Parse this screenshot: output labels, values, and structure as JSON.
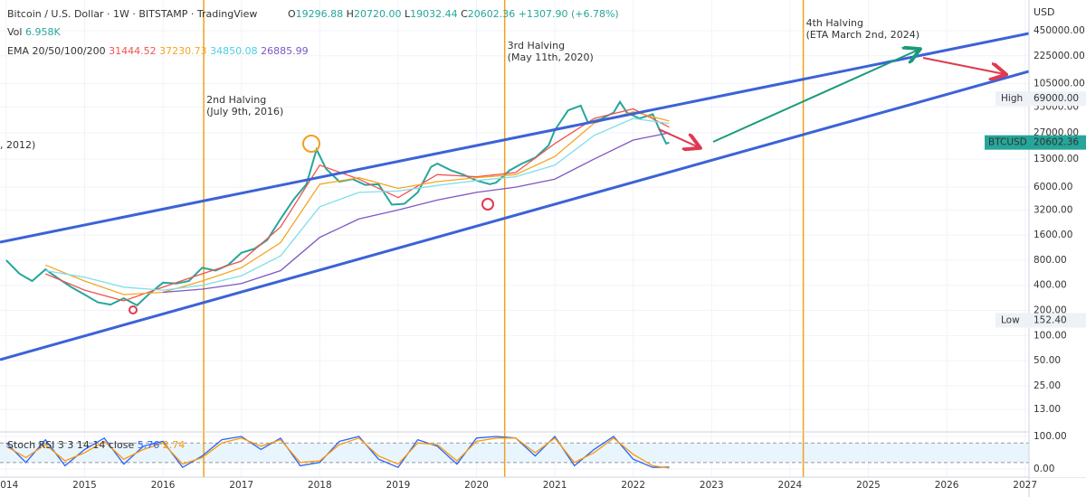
{
  "header": {
    "title": "Bitcoin / U.S. Dollar · 1W · BITSTAMP · TradingView",
    "ohlc": [
      "O",
      "19296.88",
      "H",
      "20720.00",
      "L",
      "19032.44",
      "C",
      "+1307.90 (+6.78%)"
    ],
    "volume_label": "Vol",
    "volume": "6.958K"
  },
  "chart_data": [
    {
      "type": "line",
      "label": "EMA 20/50/100/200",
      "y_unit": "USD",
      "log_scale": true,
      "grid": true,
      "xlim": [
        2013.92,
        2027.05
      ],
      "xticks": [
        2014,
        2015,
        2016,
        2017,
        2018,
        2019,
        2020,
        2021,
        2022,
        2023,
        2024,
        2025,
        2026,
        2027
      ],
      "ylim": [
        7,
        927000
      ],
      "yticks": [
        {
          "value": 450000,
          "label": "450000.00"
        },
        {
          "value": 225000,
          "label": "225000.00"
        },
        {
          "value": 105000,
          "label": "105000.00"
        },
        {
          "value": 55000,
          "label": "55000.00"
        },
        {
          "value": 27000,
          "label": "27000.00"
        },
        {
          "value": 13000,
          "label": "13000.00"
        },
        {
          "value": 6000,
          "label": "6000.00"
        },
        {
          "value": 3200,
          "label": "3200.00"
        },
        {
          "value": 1600,
          "label": "1600.00"
        },
        {
          "value": 800,
          "label": "800.00"
        },
        {
          "value": 400,
          "label": "400.00"
        },
        {
          "value": 200,
          "label": "200.00"
        },
        {
          "value": 100,
          "label": "100.00"
        },
        {
          "value": 50,
          "label": "50.00"
        },
        {
          "value": 25,
          "label": "25.00"
        },
        {
          "value": 13,
          "label": "13.00"
        }
      ],
      "series": [
        {
          "name": "BTCUSD",
          "color": "#26a69a",
          "x": [
            2014.0,
            2014.17,
            2014.33,
            2014.5,
            2014.67,
            2014.83,
            2015.0,
            2015.17,
            2015.33,
            2015.5,
            2015.67,
            2015.83,
            2016.0,
            2016.17,
            2016.33,
            2016.5,
            2016.67,
            2016.83,
            2017.0,
            2017.17,
            2017.33,
            2017.5,
            2017.67,
            2017.83,
            2017.96,
            2018.08,
            2018.25,
            2018.42,
            2018.58,
            2018.75,
            2018.92,
            2019.08,
            2019.25,
            2019.42,
            2019.5,
            2019.67,
            2019.83,
            2020.0,
            2020.17,
            2020.25,
            2020.42,
            2020.58,
            2020.75,
            2020.92,
            2021.0,
            2021.17,
            2021.33,
            2021.42,
            2021.58,
            2021.75,
            2021.83,
            2021.92,
            2022.08,
            2022.25,
            2022.33,
            2022.42,
            2022.46
          ],
          "values": [
            800,
            550,
            450,
            620,
            480,
            380,
            310,
            250,
            235,
            280,
            230,
            320,
            430,
            420,
            450,
            650,
            600,
            700,
            980,
            1100,
            1400,
            2500,
            4300,
            6500,
            17000,
            10000,
            7000,
            7500,
            6400,
            6500,
            3700,
            3800,
            5200,
            10500,
            11500,
            9600,
            8500,
            7200,
            6500,
            6800,
            9500,
            11500,
            13500,
            19000,
            29000,
            50000,
            57000,
            36000,
            39000,
            47000,
            63000,
            47000,
            40000,
            45000,
            30000,
            20000,
            20602.36
          ]
        },
        {
          "color": "#ef5350",
          "x": [
            2014.5,
            2015,
            2015.5,
            2016,
            2016.5,
            2017,
            2017.5,
            2018,
            2018.5,
            2019,
            2019.5,
            2020,
            2020.5,
            2021,
            2021.5,
            2022,
            2022.46
          ],
          "values": [
            550,
            350,
            260,
            380,
            550,
            780,
            2000,
            11000,
            7500,
            4500,
            8500,
            8000,
            9000,
            20000,
            40000,
            52000,
            31444.52
          ]
        },
        {
          "color": "#f5a623",
          "x": [
            2014.5,
            2015,
            2015.5,
            2016,
            2016.5,
            2017,
            2017.5,
            2018,
            2018.5,
            2019,
            2019.5,
            2020,
            2020.5,
            2021,
            2021.5,
            2022,
            2022.46
          ],
          "values": [
            700,
            450,
            310,
            330,
            450,
            650,
            1300,
            6500,
            7800,
            5800,
            7000,
            7800,
            8500,
            14000,
            35000,
            48000,
            37230.73
          ]
        },
        {
          "color": "#80deea",
          "x": [
            2014.5,
            2015,
            2015.5,
            2016,
            2016.5,
            2017,
            2017.5,
            2018,
            2018.5,
            2019,
            2019.5,
            2020,
            2020.5,
            2021,
            2021.5,
            2022,
            2022.46
          ],
          "values": [
            600,
            500,
            380,
            350,
            400,
            520,
            900,
            3500,
            5200,
            5400,
            6300,
            7200,
            8000,
            11000,
            25000,
            40000,
            34850.08
          ]
        },
        {
          "color": "#7e57c2",
          "x": [
            2014.5,
            2015,
            2015.5,
            2016,
            2016.5,
            2017,
            2017.5,
            2018,
            2018.5,
            2019,
            2019.5,
            2020,
            2020.5,
            2021,
            2021.5,
            2022,
            2022.46
          ],
          "values": [
            null,
            null,
            null,
            330,
            360,
            420,
            600,
            1500,
            2500,
            3200,
            4200,
            5200,
            6000,
            7500,
            13000,
            22000,
            26885.99
          ]
        }
      ],
      "high": {
        "text": "High",
        "value": 69000,
        "label": "69000.00"
      },
      "low": {
        "text": "Low",
        "value": 152.4,
        "label": "152.40"
      },
      "event_color": "#f0a020",
      "events": [
        {
          "x": 2016.52,
          "title": "2nd Halving",
          "subtitle": "(July 9th, 2016)"
        },
        {
          "x": 2020.36,
          "title": "3rd Halving",
          "subtitle": "(May 11th, 2020)"
        },
        {
          "x": 2024.17,
          "title": "4th Halving",
          "subtitle": "(ETA March 2nd, 2024)"
        }
      ],
      "partial_label": ", 2012)"
    },
    {
      "type": "line",
      "title": "Stoch RSI 3 3 14 14 close",
      "grid": true,
      "xlim": [
        2013.92,
        2027.05
      ],
      "ylim": [
        -25,
        114
      ],
      "yticks": [
        {
          "value": 100,
          "label": "100.00"
        },
        {
          "value": 0,
          "label": "0.00"
        }
      ],
      "band": [
        20,
        80
      ],
      "series": [
        {
          "color": "#2962ff",
          "x": [
            2014,
            2014.25,
            2014.5,
            2014.75,
            2015,
            2015.25,
            2015.5,
            2015.75,
            2016,
            2016.25,
            2016.5,
            2016.75,
            2017,
            2017.25,
            2017.5,
            2017.75,
            2018,
            2018.25,
            2018.5,
            2018.75,
            2019,
            2019.25,
            2019.5,
            2019.75,
            2020,
            2020.25,
            2020.5,
            2020.75,
            2021,
            2021.25,
            2021.5,
            2021.75,
            2022,
            2022.25,
            2022.46
          ],
          "values": [
            80,
            20,
            90,
            10,
            60,
            95,
            15,
            70,
            85,
            5,
            40,
            90,
            100,
            60,
            95,
            10,
            20,
            85,
            100,
            30,
            5,
            90,
            70,
            15,
            95,
            100,
            95,
            40,
            100,
            10,
            60,
            100,
            30,
            5,
            5.76
          ]
        },
        {
          "color": "#ff9800",
          "x": [
            2014,
            2014.25,
            2014.5,
            2014.75,
            2015,
            2015.25,
            2015.5,
            2015.75,
            2016,
            2016.25,
            2016.5,
            2016.75,
            2017,
            2017.25,
            2017.5,
            2017.75,
            2018,
            2018.25,
            2018.5,
            2018.75,
            2019,
            2019.25,
            2019.5,
            2019.75,
            2020,
            2020.25,
            2020.5,
            2020.75,
            2021,
            2021.25,
            2021.5,
            2021.75,
            2022,
            2022.25,
            2022.46
          ],
          "values": [
            70,
            35,
            75,
            25,
            50,
            85,
            30,
            60,
            80,
            15,
            35,
            80,
            95,
            70,
            90,
            20,
            25,
            75,
            95,
            40,
            15,
            80,
            75,
            25,
            85,
            95,
            95,
            50,
            95,
            20,
            50,
            95,
            45,
            10,
            2.74
          ]
        }
      ]
    }
  ]
}
